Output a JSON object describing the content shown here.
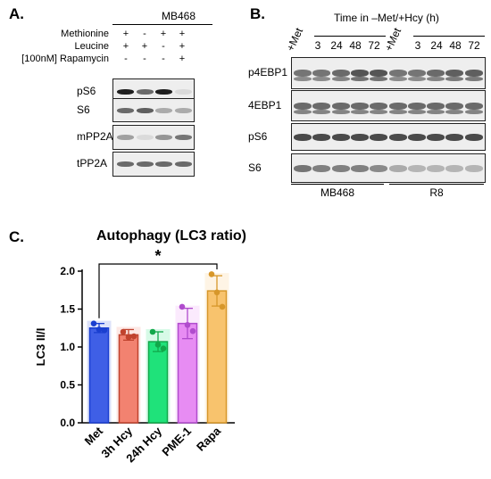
{
  "panel_a": {
    "letter": "A.",
    "cell_line": "MB468",
    "treatments": [
      {
        "label": "Methionine",
        "marks": [
          "+",
          "-",
          "+",
          "+"
        ]
      },
      {
        "label": "Leucine",
        "marks": [
          "+",
          "+",
          "-",
          "+"
        ]
      },
      {
        "label": "[100nM] Rapamycin",
        "marks": [
          "-",
          "-",
          "-",
          "+"
        ]
      }
    ],
    "blots": [
      {
        "label": "pS6",
        "lanes": [
          0.95,
          0.6,
          0.95,
          0.08
        ]
      },
      {
        "label": "S6",
        "lanes": [
          0.6,
          0.65,
          0.3,
          0.3
        ]
      },
      {
        "label": "mPP2A",
        "lanes": [
          0.35,
          0.08,
          0.4,
          0.55
        ]
      },
      {
        "label": "tPP2A",
        "lanes": [
          0.6,
          0.6,
          0.6,
          0.6
        ]
      }
    ]
  },
  "panel_b": {
    "letter": "B.",
    "time_header": "Time in –Met/+Hcy (h)",
    "lane_labels": [
      "+Met",
      "3",
      "24",
      "48",
      "72",
      "+Met",
      "3",
      "24",
      "48",
      "72"
    ],
    "blots": [
      {
        "label": "p4EBP1",
        "lanes": [
          0.55,
          0.55,
          0.6,
          0.7,
          0.7,
          0.55,
          0.55,
          0.6,
          0.65,
          0.65
        ]
      },
      {
        "label": "4EBP1",
        "lanes": [
          0.6,
          0.6,
          0.6,
          0.6,
          0.6,
          0.6,
          0.6,
          0.6,
          0.6,
          0.6
        ]
      },
      {
        "label": "pS6",
        "lanes": [
          0.75,
          0.75,
          0.75,
          0.75,
          0.75,
          0.75,
          0.75,
          0.75,
          0.75,
          0.75
        ]
      },
      {
        "label": "S6",
        "lanes": [
          0.55,
          0.5,
          0.5,
          0.5,
          0.45,
          0.3,
          0.25,
          0.25,
          0.25,
          0.25
        ]
      }
    ],
    "cell_lines": [
      "MB468",
      "R8"
    ]
  },
  "panel_c": {
    "letter": "C.",
    "significance": "*",
    "chart_data": {
      "type": "bar",
      "title": "Autophagy (LC3 ratio)",
      "ylabel": "LC3 II/I",
      "xlabel": "",
      "ylim": [
        0.0,
        2.0
      ],
      "yticks": [
        "0.0",
        "0.5",
        "1.0",
        "1.5",
        "2.0"
      ],
      "categories": [
        "Met",
        "3h Hcy",
        "24h Hcy",
        "PME-1",
        "Rapa"
      ],
      "values": [
        1.25,
        1.16,
        1.07,
        1.31,
        1.74
      ],
      "error": [
        0.06,
        0.07,
        0.13,
        0.2,
        0.2
      ],
      "points": [
        [
          1.31,
          1.22,
          1.23
        ],
        [
          1.2,
          1.14,
          1.13
        ],
        [
          1.2,
          0.98,
          1.03
        ],
        [
          1.53,
          1.21,
          1.29
        ],
        [
          1.96,
          1.53,
          1.72
        ]
      ],
      "colors": [
        "#3f5fe6",
        "#f28270",
        "#1fe27a",
        "#e78cf3",
        "#f8c36d"
      ],
      "dark_colors": [
        "#1a3fd0",
        "#c0432e",
        "#11a84a",
        "#b04ccd",
        "#d7972a"
      ],
      "significance_pair": [
        "Met",
        "Rapa"
      ]
    }
  }
}
